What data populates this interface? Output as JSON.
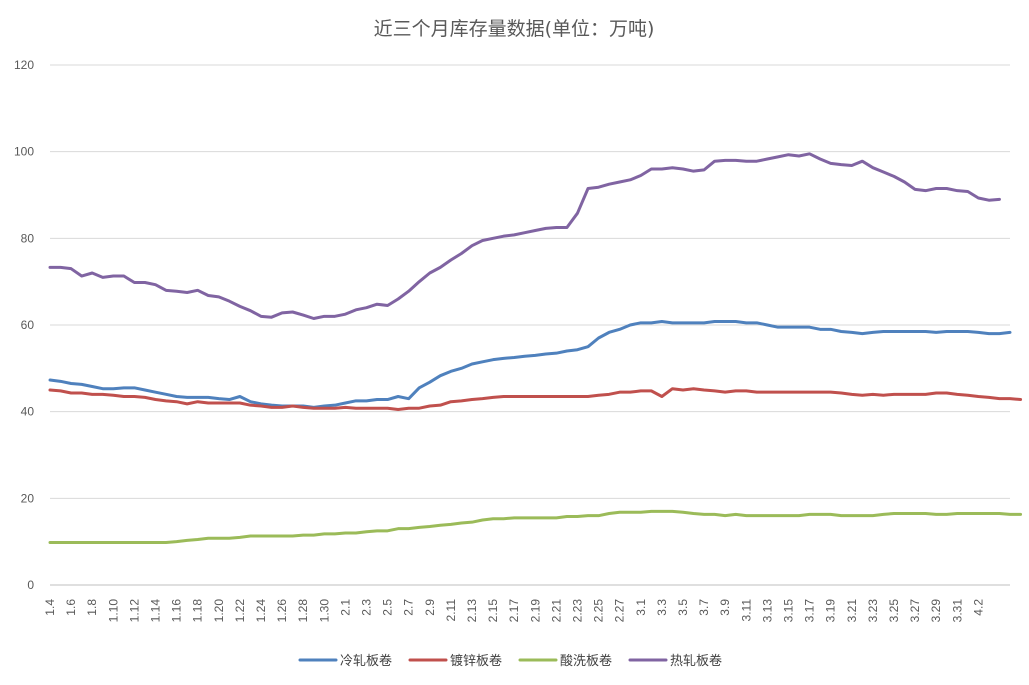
{
  "chart_data": {
    "type": "line",
    "title": "近三个月库存量数据(单位：万吨)",
    "ylim": [
      0,
      120
    ],
    "yticks": [
      "0",
      "20",
      "40",
      "60",
      "80",
      "100",
      "120"
    ],
    "xticks": [
      "1.4",
      "1.6",
      "1.8",
      "1.10",
      "1.12",
      "1.14",
      "1.16",
      "1.18",
      "1.20",
      "1.22",
      "1.24",
      "1.26",
      "1.28",
      "1.30",
      "2.1",
      "2.3",
      "2.5",
      "2.7",
      "2.9",
      "2.11",
      "2.13",
      "2.15",
      "2.17",
      "2.19",
      "2.21",
      "2.23",
      "2.25",
      "2.27",
      "3.1",
      "3.3",
      "3.5",
      "3.7",
      "3.9",
      "3.11",
      "3.13",
      "3.15",
      "3.17",
      "3.19",
      "3.21",
      "3.23",
      "3.25",
      "3.27",
      "3.29",
      "3.31",
      "4.2"
    ],
    "grid": true,
    "legend_position": "bottom",
    "series": [
      {
        "name": "冷轧板卷",
        "color": "#4f81bd",
        "values": [
          47.3,
          47.0,
          46.5,
          46.3,
          45.8,
          45.3,
          45.3,
          45.5,
          45.5,
          45.0,
          44.5,
          44.0,
          43.5,
          43.3,
          43.3,
          43.3,
          43.0,
          42.8,
          43.5,
          42.3,
          41.8,
          41.5,
          41.3,
          41.3,
          41.3,
          41.0,
          41.3,
          41.5,
          42.0,
          42.5,
          42.5,
          42.8,
          42.8,
          43.5,
          43.0,
          45.5,
          46.8,
          48.3,
          49.3,
          50.0,
          51.0,
          51.5,
          52.0,
          52.3,
          52.5,
          52.8,
          53.0,
          53.3,
          53.5,
          54.0,
          54.3,
          55.0,
          57.0,
          58.3,
          59.0,
          60.0,
          60.5,
          60.5,
          60.8,
          60.5,
          60.5,
          60.5,
          60.5,
          60.8,
          60.8,
          60.8,
          60.5,
          60.5,
          60.0,
          59.5,
          59.5,
          59.5,
          59.5,
          59.0,
          59.0,
          58.5,
          58.3,
          58.0,
          58.3,
          58.5,
          58.5,
          58.5,
          58.5,
          58.5,
          58.3,
          58.5,
          58.5,
          58.5,
          58.3,
          58.0,
          58.0,
          58.3
        ]
      },
      {
        "name": "镀锌板卷",
        "color": "#c0504d",
        "values": [
          45.0,
          44.8,
          44.3,
          44.3,
          44.0,
          44.0,
          43.8,
          43.5,
          43.5,
          43.3,
          42.8,
          42.5,
          42.3,
          41.8,
          42.3,
          42.0,
          42.0,
          42.0,
          42.0,
          41.5,
          41.3,
          41.0,
          41.0,
          41.3,
          41.0,
          40.8,
          40.8,
          40.8,
          41.0,
          40.8,
          40.8,
          40.8,
          40.8,
          40.5,
          40.8,
          40.8,
          41.3,
          41.5,
          42.3,
          42.5,
          42.8,
          43.0,
          43.3,
          43.5,
          43.5,
          43.5,
          43.5,
          43.5,
          43.5,
          43.5,
          43.5,
          43.5,
          43.8,
          44.0,
          44.5,
          44.5,
          44.8,
          44.8,
          43.5,
          45.3,
          45.0,
          45.3,
          45.0,
          44.8,
          44.5,
          44.8,
          44.8,
          44.5,
          44.5,
          44.5,
          44.5,
          44.5,
          44.5,
          44.5,
          44.5,
          44.3,
          44.0,
          43.8,
          44.0,
          43.8,
          44.0,
          44.0,
          44.0,
          44.0,
          44.3,
          44.3,
          44.0,
          43.8,
          43.5,
          43.3,
          43.0,
          43.0,
          42.8
        ]
      },
      {
        "name": "酸洗板卷",
        "color": "#9bbb59",
        "values": [
          9.8,
          9.8,
          9.8,
          9.8,
          9.8,
          9.8,
          9.8,
          9.8,
          9.8,
          9.8,
          9.8,
          9.8,
          10.0,
          10.3,
          10.5,
          10.8,
          10.8,
          10.8,
          11.0,
          11.3,
          11.3,
          11.3,
          11.3,
          11.3,
          11.5,
          11.5,
          11.8,
          11.8,
          12.0,
          12.0,
          12.3,
          12.5,
          12.5,
          13.0,
          13.0,
          13.3,
          13.5,
          13.8,
          14.0,
          14.3,
          14.5,
          15.0,
          15.3,
          15.3,
          15.5,
          15.5,
          15.5,
          15.5,
          15.5,
          15.8,
          15.8,
          16.0,
          16.0,
          16.5,
          16.8,
          16.8,
          16.8,
          17.0,
          17.0,
          17.0,
          16.8,
          16.5,
          16.3,
          16.3,
          16.0,
          16.3,
          16.0,
          16.0,
          16.0,
          16.0,
          16.0,
          16.0,
          16.3,
          16.3,
          16.3,
          16.0,
          16.0,
          16.0,
          16.0,
          16.3,
          16.5,
          16.5,
          16.5,
          16.5,
          16.3,
          16.3,
          16.5,
          16.5,
          16.5,
          16.5,
          16.5,
          16.3,
          16.3
        ]
      },
      {
        "name": "热轧板卷",
        "color": "#8064a2",
        "values": [
          73.3,
          73.3,
          73.0,
          71.3,
          72.0,
          71.0,
          71.3,
          71.3,
          69.8,
          69.8,
          69.3,
          68.0,
          67.8,
          67.5,
          68.0,
          66.8,
          66.5,
          65.5,
          64.3,
          63.3,
          62.0,
          61.8,
          62.8,
          63.0,
          62.3,
          61.5,
          62.0,
          62.0,
          62.5,
          63.5,
          64.0,
          64.8,
          64.5,
          66.0,
          67.8,
          70.0,
          72.0,
          73.3,
          75.0,
          76.5,
          78.3,
          79.5,
          80.0,
          80.5,
          80.8,
          81.3,
          81.8,
          82.3,
          82.5,
          82.5,
          85.8,
          91.5,
          91.8,
          92.5,
          93.0,
          93.5,
          94.5,
          96.0,
          96.0,
          96.3,
          96.0,
          95.5,
          95.8,
          97.8,
          98.0,
          98.0,
          97.8,
          97.8,
          98.3,
          98.8,
          99.3,
          99.0,
          99.5,
          98.3,
          97.3,
          97.0,
          96.8,
          97.8,
          96.3,
          95.3,
          94.3,
          93.0,
          91.3,
          91.0,
          91.5,
          91.5,
          91.0,
          90.8,
          89.3,
          88.8,
          89.0
        ]
      }
    ]
  }
}
